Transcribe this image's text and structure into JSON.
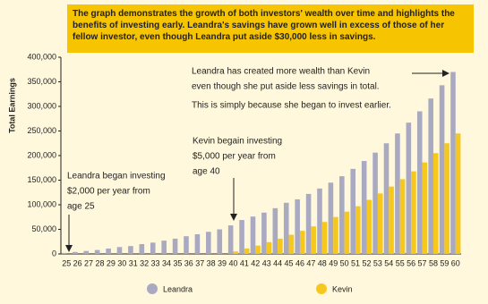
{
  "chart_data": {
    "type": "bar",
    "note": "The graph demonstrates the growth of both investors' wealth over time and highlights the benefits of investing early. Leandra's savings have grown well in excess of those of her fellow investor, even though Leandra put aside $30,000 less in savings.",
    "y_label": "Total Earnings",
    "categories": [
      "25",
      "26",
      "27",
      "28",
      "29",
      "30",
      "31",
      "32",
      "33",
      "34",
      "35",
      "36",
      "37",
      "38",
      "39",
      "40",
      "41",
      "42",
      "43",
      "44",
      "45",
      "46",
      "47",
      "48",
      "49",
      "50",
      "51",
      "52",
      "53",
      "54",
      "55",
      "56",
      "57",
      "58",
      "59",
      "60"
    ],
    "series": [
      {
        "name": "Leandra",
        "color": "#a9a9c2",
        "values": [
          2000,
          4000,
          6000,
          8000,
          11000,
          14000,
          16000,
          20000,
          23000,
          27000,
          31000,
          36000,
          40000,
          45000,
          50000,
          58000,
          69000,
          76000,
          84000,
          93000,
          104000,
          111000,
          122000,
          133000,
          145000,
          158000,
          173000,
          189000,
          206000,
          225000,
          245000,
          267000,
          290000,
          316000,
          343000,
          370000
        ]
      },
      {
        "name": "Kevin",
        "color": "#f6c81e",
        "values": [
          null,
          null,
          null,
          null,
          null,
          null,
          null,
          null,
          null,
          null,
          null,
          null,
          null,
          null,
          null,
          5000,
          11000,
          17000,
          24000,
          31000,
          39000,
          47000,
          56000,
          65000,
          75000,
          86000,
          97000,
          110000,
          123000,
          137000,
          152000,
          168000,
          186000,
          205000,
          225000,
          245000
        ]
      }
    ],
    "ylim": [
      0,
      400000
    ],
    "yticks": [
      0,
      {
        "value": 50000,
        "label": "50,000"
      },
      {
        "value": 100000,
        "label": "100,000"
      },
      {
        "value": 150000,
        "label": "150,000"
      },
      {
        "value": 200000,
        "label": "200,000"
      },
      {
        "value": 250000,
        "label": "250,000"
      },
      {
        "value": 300000,
        "label": "300,000"
      },
      {
        "value": 350000,
        "label": "350,000"
      },
      {
        "value": 400000,
        "label": "400,000"
      }
    ],
    "annotations": [
      {
        "lines": [
          "Leandra began investing",
          "$2,000 per year from",
          "age 25"
        ]
      },
      {
        "lines": [
          "Kevin begain investing",
          "$5,000 per year from",
          "age 40"
        ]
      },
      {
        "lines": [
          "Leandra has created more wealth than Kevin",
          "even though she put aside less savings in total.",
          "This is simply because she began to invest earlier."
        ]
      }
    ]
  }
}
